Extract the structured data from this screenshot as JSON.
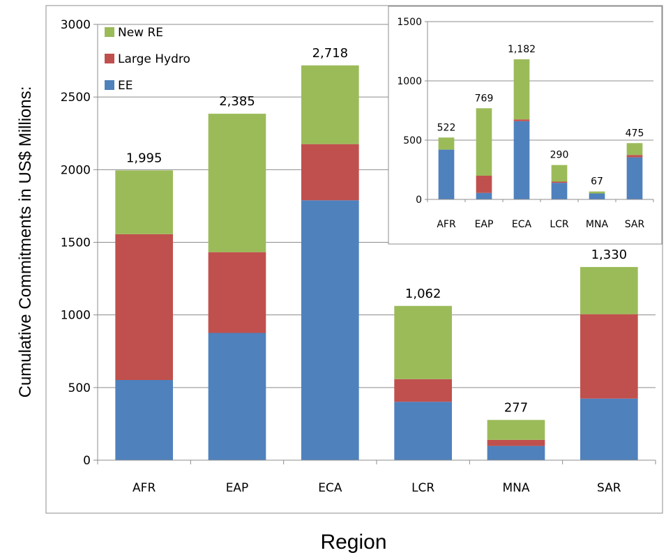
{
  "chart_data": [
    {
      "type": "bar",
      "stacked": true,
      "xlabel": "Region",
      "ylabel": "Cumulative Commitments in US$ Millions:",
      "ylim": [
        0,
        3000
      ],
      "yticks": [
        "0",
        "500",
        "1000",
        "1500",
        "2000",
        "2500",
        "3000"
      ],
      "grid": true,
      "legend_position": "top-left",
      "categories": [
        "AFR",
        "EAP",
        "ECA",
        "LCR",
        "MNA",
        "SAR"
      ],
      "totals": [
        "1,995",
        "2,385",
        "2,718",
        "1,062",
        "277",
        "1,330"
      ],
      "series": [
        {
          "name": "EE",
          "color": "#4f81bd",
          "values": [
            552,
            876,
            1789,
            402,
            98,
            424
          ]
        },
        {
          "name": "Large Hydro",
          "color": "#c0504d",
          "values": [
            1004,
            556,
            387,
            156,
            42,
            581
          ]
        },
        {
          "name": "New RE",
          "color": "#9bbb59",
          "values": [
            439,
            953,
            542,
            504,
            137,
            325
          ]
        }
      ]
    },
    {
      "type": "bar",
      "stacked": true,
      "ylim": [
        0,
        1500
      ],
      "yticks": [
        "0",
        "500",
        "1000",
        "1500"
      ],
      "grid": true,
      "categories": [
        "AFR",
        "EAP",
        "ECA",
        "LCR",
        "MNA",
        "SAR"
      ],
      "totals": [
        "522",
        "769",
        "1,182",
        "290",
        "67",
        "475"
      ],
      "series": [
        {
          "name": "EE",
          "color": "#4f81bd",
          "values": [
            420,
            55,
            660,
            140,
            50,
            355
          ]
        },
        {
          "name": "Large Hydro",
          "color": "#c0504d",
          "values": [
            0,
            145,
            15,
            10,
            0,
            20
          ]
        },
        {
          "name": "New RE",
          "color": "#9bbb59",
          "values": [
            102,
            569,
            507,
            140,
            17,
            100
          ]
        }
      ]
    }
  ]
}
